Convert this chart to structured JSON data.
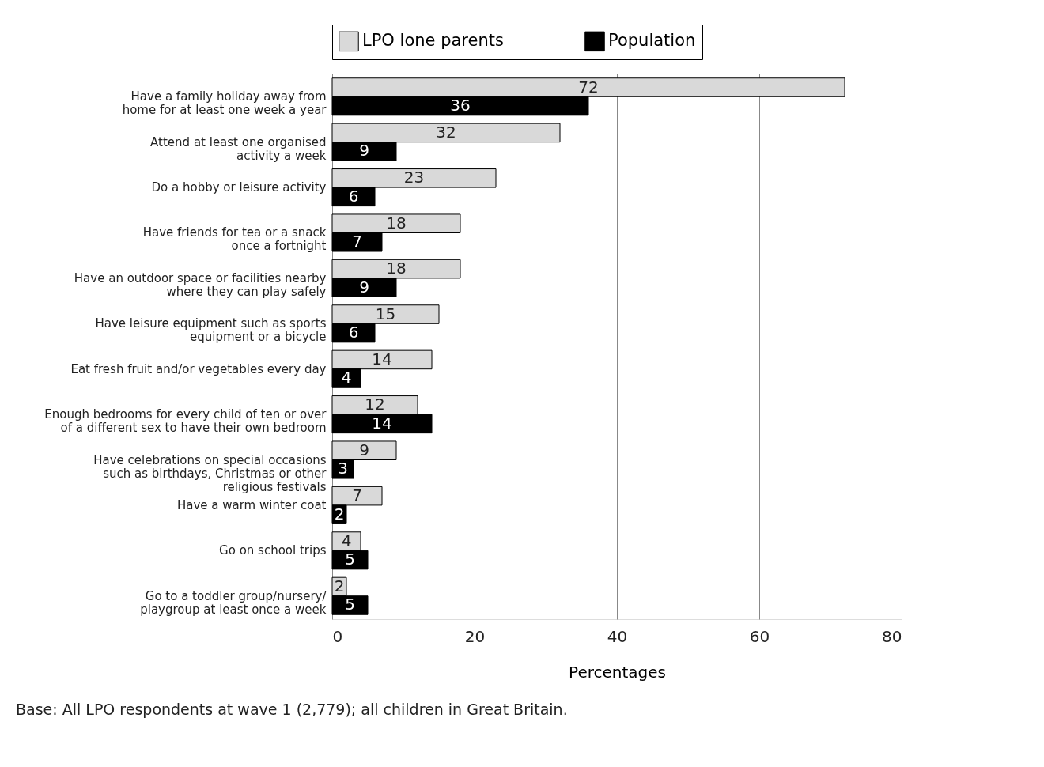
{
  "chart_data": {
    "type": "bar",
    "orientation": "horizontal",
    "xlabel": "Percentages",
    "categories": [
      "Have a family holiday away from\nhome for at least one week a year",
      "Attend at least one organised\nactivity a week",
      "Do a hobby or leisure activity",
      "Have friends for tea or a snack\nonce a fortnight",
      "Have an outdoor space or facilities nearby\nwhere they can play safely",
      "Have leisure equipment such as sports\nequipment or a bicycle",
      "Eat fresh fruit and/or vegetables every day",
      "Enough bedrooms for every child of ten or over\nof a different sex to have their own bedroom",
      "Have celebrations on special occasions\nsuch as birthdays, Christmas or other\nreligious festivals",
      "Have a warm winter coat",
      "Go on school trips",
      "Go to a toddler group/nursery/\nplaygroup at least once a week"
    ],
    "series": [
      {
        "name": "LPO lone parents",
        "color": "#d9d9d9",
        "values": [
          72,
          32,
          23,
          18,
          18,
          15,
          14,
          12,
          9,
          7,
          4,
          2
        ]
      },
      {
        "name": "Population",
        "color": "#000000",
        "values": [
          36,
          9,
          6,
          7,
          9,
          6,
          4,
          14,
          3,
          2,
          5,
          5
        ]
      }
    ],
    "xlim": [
      0,
      80
    ],
    "xticks": [
      0,
      20,
      40,
      60,
      80
    ],
    "grid": "x",
    "legend": "top",
    "data_labels": true,
    "annotations": [
      "Base: All LPO respondents at wave 1 (2,779); all children in Great Britain."
    ]
  }
}
